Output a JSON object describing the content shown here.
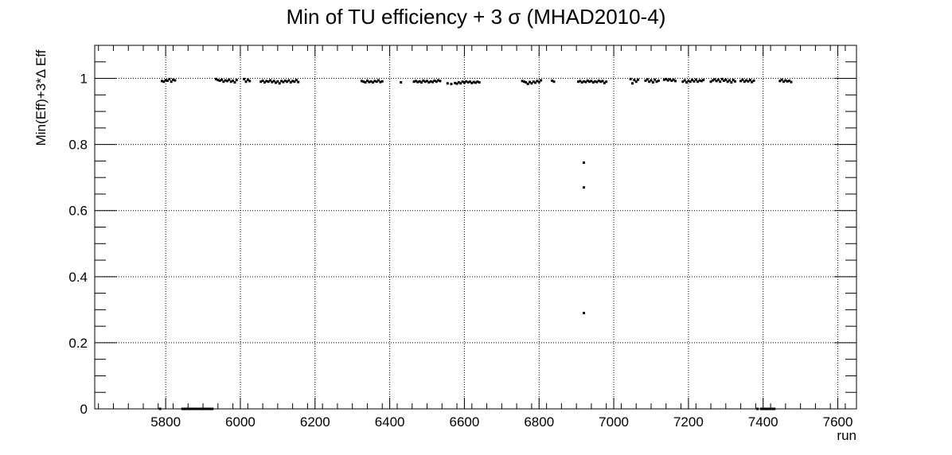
{
  "chart_data": {
    "type": "scatter",
    "title": "Min of TU efficiency + 3 σ (MHAD2010-4)",
    "xlabel": "run",
    "ylabel": "Min(Eff)+3*Δ Eff",
    "xlim": [
      5610,
      7650
    ],
    "ylim": [
      0,
      1.1
    ],
    "xticks": [
      "5800",
      "6000",
      "6200",
      "6400",
      "6600",
      "6800",
      "7000",
      "7200",
      "7400",
      "7600"
    ],
    "yticks": [
      "0",
      "0.2",
      "0.4",
      "0.6",
      "0.8",
      "1"
    ],
    "grid": true,
    "marker_color": "#000000",
    "series": [
      {
        "points": [
          [
            5790,
            0.992
          ],
          [
            5795,
            0.99
          ],
          [
            5800,
            0.995
          ],
          [
            5805,
            0.993
          ],
          [
            5810,
            0.998
          ],
          [
            5815,
            0.99
          ],
          [
            5820,
            0.996
          ],
          [
            5825,
            0.994
          ],
          [
            5935,
            0.998
          ],
          [
            5940,
            0.995
          ],
          [
            5945,
            0.993
          ],
          [
            5950,
            0.996
          ],
          [
            5955,
            0.99
          ],
          [
            5960,
            0.994
          ],
          [
            5965,
            0.992
          ],
          [
            5970,
            0.996
          ],
          [
            5975,
            0.99
          ],
          [
            5980,
            0.993
          ],
          [
            5985,
            0.988
          ],
          [
            5990,
            0.995
          ],
          [
            6010,
            0.998
          ],
          [
            6015,
            0.99
          ],
          [
            6020,
            0.996
          ],
          [
            6025,
            0.992
          ],
          [
            6055,
            0.99
          ],
          [
            6060,
            0.993
          ],
          [
            6065,
            0.988
          ],
          [
            6070,
            0.992
          ],
          [
            6075,
            0.99
          ],
          [
            6080,
            0.994
          ],
          [
            6085,
            0.989
          ],
          [
            6090,
            0.992
          ],
          [
            6095,
            0.987
          ],
          [
            6100,
            0.991
          ],
          [
            6105,
            0.985
          ],
          [
            6110,
            0.992
          ],
          [
            6115,
            0.989
          ],
          [
            6120,
            0.993
          ],
          [
            6125,
            0.99
          ],
          [
            6130,
            0.994
          ],
          [
            6135,
            0.988
          ],
          [
            6140,
            0.992
          ],
          [
            6145,
            0.99
          ],
          [
            6150,
            0.995
          ],
          [
            6155,
            0.989
          ],
          [
            6325,
            0.992
          ],
          [
            6330,
            0.99
          ],
          [
            6335,
            0.988
          ],
          [
            6340,
            0.993
          ],
          [
            6345,
            0.989
          ],
          [
            6350,
            0.991
          ],
          [
            6355,
            0.988
          ],
          [
            6360,
            0.992
          ],
          [
            6365,
            0.99
          ],
          [
            6370,
            0.994
          ],
          [
            6375,
            0.989
          ],
          [
            6380,
            0.991
          ],
          [
            6430,
            0.988
          ],
          [
            6465,
            0.99
          ],
          [
            6470,
            0.992
          ],
          [
            6475,
            0.989
          ],
          [
            6480,
            0.991
          ],
          [
            6485,
            0.988
          ],
          [
            6490,
            0.993
          ],
          [
            6495,
            0.99
          ],
          [
            6500,
            0.992
          ],
          [
            6505,
            0.988
          ],
          [
            6510,
            0.991
          ],
          [
            6515,
            0.989
          ],
          [
            6520,
            0.993
          ],
          [
            6525,
            0.99
          ],
          [
            6530,
            0.994
          ],
          [
            6535,
            0.992
          ],
          [
            6555,
            0.985
          ],
          [
            6565,
            0.983
          ],
          [
            6575,
            0.986
          ],
          [
            6580,
            0.984
          ],
          [
            6585,
            0.988
          ],
          [
            6590,
            0.985
          ],
          [
            6595,
            0.99
          ],
          [
            6600,
            0.987
          ],
          [
            6605,
            0.991
          ],
          [
            6610,
            0.988
          ],
          [
            6615,
            0.99
          ],
          [
            6620,
            0.986
          ],
          [
            6625,
            0.989
          ],
          [
            6630,
            0.987
          ],
          [
            6635,
            0.99
          ],
          [
            6640,
            0.988
          ],
          [
            6755,
            0.992
          ],
          [
            6760,
            0.99
          ],
          [
            6765,
            0.988
          ],
          [
            6770,
            0.983
          ],
          [
            6775,
            0.989
          ],
          [
            6780,
            0.985
          ],
          [
            6785,
            0.99
          ],
          [
            6790,
            0.987
          ],
          [
            6795,
            0.992
          ],
          [
            6800,
            0.989
          ],
          [
            6805,
            0.994
          ],
          [
            6835,
            0.993
          ],
          [
            6840,
            0.99
          ],
          [
            6905,
            0.99
          ],
          [
            6910,
            0.992
          ],
          [
            6915,
            0.988
          ],
          [
            6920,
            0.991
          ],
          [
            6925,
            0.989
          ],
          [
            6930,
            0.993
          ],
          [
            6935,
            0.99
          ],
          [
            6940,
            0.992
          ],
          [
            6945,
            0.988
          ],
          [
            6950,
            0.991
          ],
          [
            6955,
            0.989
          ],
          [
            6960,
            0.993
          ],
          [
            6965,
            0.99
          ],
          [
            6970,
            0.992
          ],
          [
            6975,
            0.986
          ],
          [
            6980,
            0.99
          ],
          [
            6920,
            0.745
          ],
          [
            6920,
            0.67
          ],
          [
            6920,
            0.29
          ],
          [
            7045,
            0.998
          ],
          [
            7050,
            0.985
          ],
          [
            7055,
            0.995
          ],
          [
            7060,
            0.99
          ],
          [
            7065,
            0.996
          ],
          [
            7085,
            0.993
          ],
          [
            7090,
            0.997
          ],
          [
            7095,
            0.99
          ],
          [
            7100,
            0.994
          ],
          [
            7105,
            0.988
          ],
          [
            7110,
            0.996
          ],
          [
            7115,
            0.99
          ],
          [
            7120,
            0.993
          ],
          [
            7135,
            0.996
          ],
          [
            7140,
            0.998
          ],
          [
            7145,
            0.994
          ],
          [
            7150,
            0.997
          ],
          [
            7155,
            0.993
          ],
          [
            7160,
            0.996
          ],
          [
            7165,
            0.992
          ],
          [
            7185,
            0.99
          ],
          [
            7190,
            0.994
          ],
          [
            7195,
            0.988
          ],
          [
            7200,
            0.992
          ],
          [
            7205,
            0.99
          ],
          [
            7210,
            0.995
          ],
          [
            7215,
            0.991
          ],
          [
            7220,
            0.996
          ],
          [
            7225,
            0.99
          ],
          [
            7230,
            0.994
          ],
          [
            7235,
            0.992
          ],
          [
            7240,
            0.995
          ],
          [
            7260,
            0.99
          ],
          [
            7265,
            0.994
          ],
          [
            7270,
            0.997
          ],
          [
            7275,
            0.992
          ],
          [
            7280,
            0.996
          ],
          [
            7285,
            0.99
          ],
          [
            7290,
            0.998
          ],
          [
            7295,
            0.993
          ],
          [
            7300,
            0.996
          ],
          [
            7305,
            0.99
          ],
          [
            7310,
            0.994
          ],
          [
            7315,
            0.988
          ],
          [
            7320,
            0.995
          ],
          [
            7325,
            0.991
          ],
          [
            7340,
            0.992
          ],
          [
            7345,
            0.996
          ],
          [
            7350,
            0.99
          ],
          [
            7355,
            0.994
          ],
          [
            7360,
            0.991
          ],
          [
            7365,
            0.995
          ],
          [
            7370,
            0.989
          ],
          [
            7375,
            0.993
          ],
          [
            7445,
            0.992
          ],
          [
            7450,
            0.996
          ],
          [
            7455,
            0.99
          ],
          [
            7460,
            0.994
          ],
          [
            7465,
            0.991
          ],
          [
            7470,
            0.993
          ],
          [
            7475,
            0.989
          ],
          [
            5785,
            0.0
          ],
          [
            5845,
            0.0
          ],
          [
            5850,
            0.0
          ],
          [
            5855,
            0.0
          ],
          [
            5860,
            0.0
          ],
          [
            5865,
            0.0
          ],
          [
            5870,
            0.0
          ],
          [
            5875,
            0.0
          ],
          [
            5880,
            0.0
          ],
          [
            5885,
            0.0
          ],
          [
            5890,
            0.0
          ],
          [
            5895,
            0.0
          ],
          [
            5900,
            0.0
          ],
          [
            5905,
            0.0
          ],
          [
            5910,
            0.0
          ],
          [
            5915,
            0.0
          ],
          [
            5920,
            0.0
          ],
          [
            5925,
            0.0
          ],
          [
            7385,
            0.0
          ],
          [
            7395,
            0.0
          ],
          [
            7400,
            0.0
          ],
          [
            7405,
            0.0
          ],
          [
            7410,
            0.0
          ],
          [
            7415,
            0.0
          ],
          [
            7420,
            0.0
          ],
          [
            7425,
            0.0
          ],
          [
            7430,
            0.0
          ]
        ]
      }
    ]
  }
}
